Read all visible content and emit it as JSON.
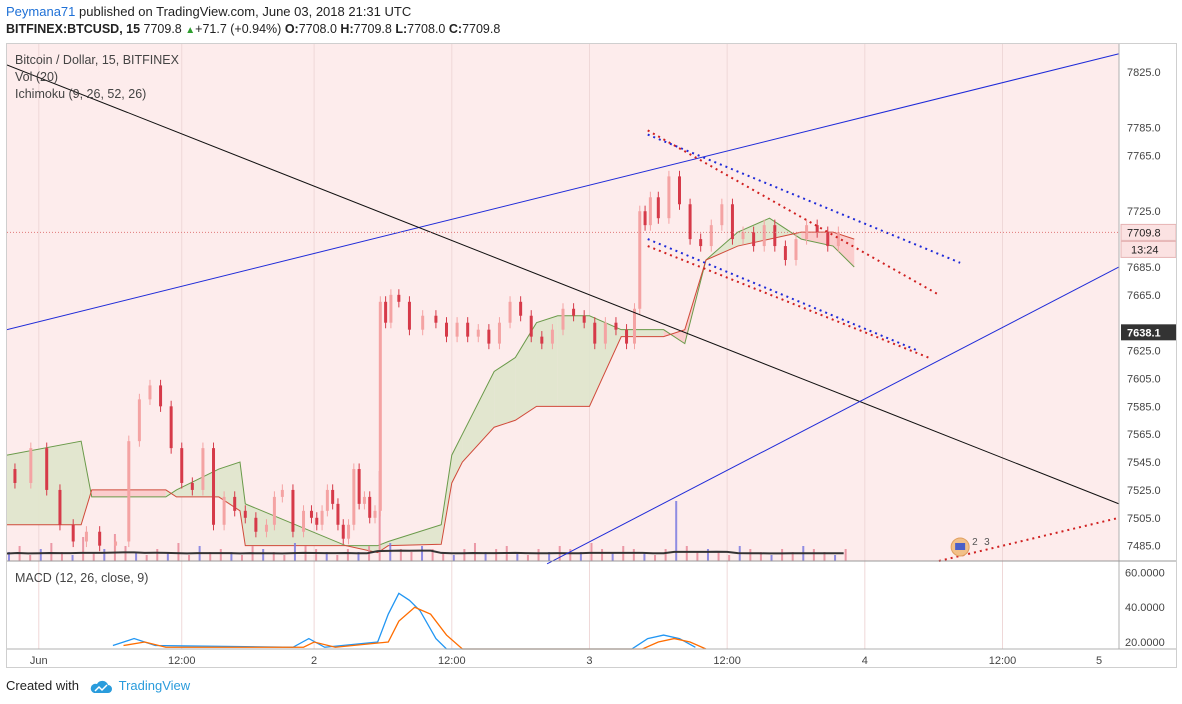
{
  "header": {
    "author": "Peymana71",
    "published": "published on TradingView.com, June 03, 2018 21:31 UTC",
    "symbol": "BITFINEX:BTCUSD, 15",
    "price": "7709.8",
    "up_arrow": "▲",
    "change": "+71.7 (+0.94%)",
    "o_label": "O:",
    "o": "7708.0",
    "h_label": "H:",
    "h": "7709.8",
    "l_label": "L:",
    "l": "7708.0",
    "c_label": "C:",
    "c": "7709.8"
  },
  "legend": {
    "title": "Bitcoin / Dollar, 15, BITFINEX",
    "vol": "Vol (20)",
    "ichimoku": "Ichimoku (9, 26, 52, 26)",
    "macd": "MACD (12, 26, close, 9)"
  },
  "footer": {
    "created": "Created with",
    "brand": "TradingView"
  },
  "colors": {
    "up": "#f4a3a3",
    "down": "#d63a49",
    "cloud_green": "#dfe6cc",
    "cloud_red": "#fbcaca",
    "trend_blue": "#1f2bd8",
    "trend_black": "#111111",
    "macd": "#2196f3",
    "signal": "#ff6d00",
    "plot_bg": "#fdecec"
  },
  "markers": {
    "numbers": [
      "2",
      "3"
    ]
  },
  "chart_data": [
    {
      "type": "candlestick",
      "title": "Bitcoin / Dollar, 15, BITFINEX",
      "ylim": [
        7474,
        7845
      ],
      "y_ticks": [
        "7825.0",
        "7785.0",
        "7765.0",
        "7725.0",
        "7709.8",
        "7685.0",
        "7665.0",
        "7638.1",
        "7625.0",
        "7605.0",
        "7585.0",
        "7565.0",
        "7545.0",
        "7525.0",
        "7505.0",
        "7485.0"
      ],
      "price_label": "7709.8",
      "countdown": "13:24",
      "level_label": "7638.1",
      "x_ticks": [
        "Jun",
        "12:00",
        "2",
        "12:00",
        "3",
        "12:00",
        "4",
        "12:00",
        "5"
      ],
      "price_path": [
        [
          0,
          7540
        ],
        [
          3,
          7530
        ],
        [
          6,
          7555
        ],
        [
          9,
          7525
        ],
        [
          11,
          7500
        ],
        [
          14,
          7488
        ],
        [
          16,
          7495
        ],
        [
          19,
          7485
        ],
        [
          22,
          7488
        ],
        [
          24,
          7560
        ],
        [
          26,
          7590
        ],
        [
          28,
          7600
        ],
        [
          30,
          7585
        ],
        [
          32,
          7555
        ],
        [
          34,
          7530
        ],
        [
          36,
          7525
        ],
        [
          38,
          7555
        ],
        [
          40,
          7500
        ],
        [
          42,
          7520
        ],
        [
          44,
          7510
        ],
        [
          46,
          7505
        ],
        [
          48,
          7495
        ],
        [
          50,
          7500
        ],
        [
          51,
          7520
        ],
        [
          53,
          7525
        ],
        [
          55,
          7495
        ],
        [
          57,
          7510
        ],
        [
          58,
          7505
        ],
        [
          59,
          7500
        ],
        [
          60,
          7510
        ],
        [
          61,
          7525
        ],
        [
          62,
          7515
        ],
        [
          63,
          7500
        ],
        [
          64,
          7490
        ],
        [
          65,
          7500
        ],
        [
          66,
          7540
        ],
        [
          67,
          7515
        ],
        [
          68,
          7520
        ],
        [
          69,
          7505
        ],
        [
          70,
          7510
        ],
        [
          71,
          7660
        ],
        [
          72,
          7645
        ],
        [
          73,
          7665
        ],
        [
          75,
          7660
        ],
        [
          77,
          7640
        ],
        [
          80,
          7650
        ],
        [
          82,
          7645
        ],
        [
          84,
          7635
        ],
        [
          86,
          7645
        ],
        [
          88,
          7635
        ],
        [
          90,
          7640
        ],
        [
          92,
          7630
        ],
        [
          94,
          7645
        ],
        [
          96,
          7660
        ],
        [
          98,
          7650
        ],
        [
          100,
          7635
        ],
        [
          102,
          7630
        ],
        [
          104,
          7640
        ],
        [
          106,
          7655
        ],
        [
          108,
          7650
        ],
        [
          110,
          7645
        ],
        [
          112,
          7630
        ],
        [
          114,
          7645
        ],
        [
          116,
          7640
        ],
        [
          118,
          7630
        ],
        [
          119,
          7655
        ],
        [
          120,
          7725
        ],
        [
          121,
          7715
        ],
        [
          122,
          7735
        ],
        [
          124,
          7720
        ],
        [
          126,
          7750
        ],
        [
          128,
          7730
        ],
        [
          130,
          7705
        ],
        [
          132,
          7700
        ],
        [
          134,
          7715
        ],
        [
          136,
          7730
        ],
        [
          138,
          7705
        ],
        [
          140,
          7710
        ],
        [
          142,
          7700
        ],
        [
          144,
          7715
        ],
        [
          146,
          7700
        ],
        [
          148,
          7690
        ],
        [
          150,
          7705
        ],
        [
          152,
          7715
        ],
        [
          154,
          7710
        ],
        [
          156,
          7700
        ],
        [
          158,
          7710
        ]
      ],
      "ichimoku_span_a": [
        [
          0,
          7550
        ],
        [
          14,
          7560
        ],
        [
          16,
          7520
        ],
        [
          30,
          7520
        ],
        [
          32,
          7525
        ],
        [
          40,
          7540
        ],
        [
          44,
          7545
        ],
        [
          45,
          7515
        ],
        [
          64,
          7485
        ],
        [
          70,
          7485
        ],
        [
          72,
          7488
        ],
        [
          82,
          7500
        ],
        [
          84,
          7550
        ],
        [
          86,
          7565
        ],
        [
          92,
          7610
        ],
        [
          96,
          7620
        ],
        [
          100,
          7645
        ],
        [
          104,
          7650
        ],
        [
          110,
          7650
        ],
        [
          116,
          7640
        ],
        [
          124,
          7640
        ],
        [
          128,
          7630
        ],
        [
          132,
          7690
        ],
        [
          138,
          7710
        ],
        [
          144,
          7720
        ],
        [
          150,
          7705
        ],
        [
          156,
          7700
        ],
        [
          160,
          7685
        ]
      ],
      "ichimoku_span_b": [
        [
          0,
          7500
        ],
        [
          14,
          7500
        ],
        [
          16,
          7525
        ],
        [
          30,
          7525
        ],
        [
          32,
          7520
        ],
        [
          40,
          7520
        ],
        [
          44,
          7510
        ],
        [
          45,
          7485
        ],
        [
          64,
          7485
        ],
        [
          70,
          7480
        ],
        [
          72,
          7485
        ],
        [
          82,
          7486
        ],
        [
          84,
          7530
        ],
        [
          86,
          7545
        ],
        [
          92,
          7570
        ],
        [
          96,
          7575
        ],
        [
          100,
          7585
        ],
        [
          104,
          7585
        ],
        [
          110,
          7585
        ],
        [
          116,
          7635
        ],
        [
          124,
          7635
        ],
        [
          128,
          7640
        ],
        [
          132,
          7690
        ],
        [
          138,
          7700
        ],
        [
          144,
          7705
        ],
        [
          150,
          7710
        ],
        [
          156,
          7710
        ],
        [
          160,
          7705
        ]
      ],
      "volume": [
        3,
        5,
        2,
        4,
        6,
        3,
        2,
        8,
        3,
        4,
        9,
        5,
        3,
        2,
        4,
        3,
        6,
        2,
        5,
        3,
        4,
        3,
        2,
        5,
        4,
        3,
        2,
        6,
        5,
        4,
        3,
        2,
        4,
        3,
        5,
        30,
        6,
        4,
        3,
        5,
        4,
        3,
        2,
        4,
        6,
        3,
        4,
        5,
        3,
        2,
        4,
        3,
        5,
        4,
        3,
        6,
        4,
        3,
        5,
        4,
        3,
        2,
        4,
        20,
        5,
        3,
        4,
        3,
        2,
        5,
        4,
        3,
        2,
        4,
        3,
        5,
        4,
        3,
        2,
        4
      ],
      "trendlines": [
        {
          "color": "blue",
          "from": [
            0,
            7640
          ],
          "to": [
            210,
            7838
          ]
        },
        {
          "color": "black",
          "from": [
            0,
            7830
          ],
          "to": [
            210,
            7515
          ]
        },
        {
          "color": "blue",
          "from": [
            102,
            7472
          ],
          "to": [
            210,
            7685
          ]
        },
        {
          "color": "blue-dotted",
          "from": [
            121,
            7780
          ],
          "to": [
            180,
            7688
          ]
        },
        {
          "color": "blue-dotted",
          "from": [
            121,
            7705
          ],
          "to": [
            172,
            7625
          ]
        },
        {
          "color": "red-dotted",
          "from": [
            121,
            7783
          ],
          "to": [
            176,
            7665
          ]
        },
        {
          "color": "red-dotted",
          "from": [
            121,
            7700
          ],
          "to": [
            174,
            7620
          ]
        },
        {
          "color": "red-dotted",
          "from": [
            176,
            7474
          ],
          "to": [
            210,
            7505
          ]
        }
      ]
    },
    {
      "type": "line",
      "title": "MACD (12, 26, close, 9)",
      "ylim": [
        16,
        66
      ],
      "y_ticks": [
        "60.0000",
        "40.0000",
        "20.0000"
      ],
      "series": [
        {
          "name": "MACD",
          "values": [
            [
              20,
              18
            ],
            [
              24,
              22
            ],
            [
              28,
              18
            ],
            [
              54,
              17
            ],
            [
              57,
              22
            ],
            [
              60,
              17
            ],
            [
              70,
              20
            ],
            [
              72,
              36
            ],
            [
              74,
              48
            ],
            [
              76,
              44
            ],
            [
              78,
              38
            ],
            [
              81,
              22
            ],
            [
              83,
              16
            ],
            [
              118,
              16
            ],
            [
              121,
              22
            ],
            [
              124,
              24
            ],
            [
              127,
              22
            ],
            [
              130,
              17
            ]
          ]
        },
        {
          "name": "Signal",
          "values": [
            [
              22,
              18
            ],
            [
              26,
              20
            ],
            [
              30,
              17
            ],
            [
              56,
              17
            ],
            [
              58,
              20
            ],
            [
              62,
              17
            ],
            [
              72,
              20
            ],
            [
              74,
              32
            ],
            [
              77,
              40
            ],
            [
              80,
              36
            ],
            [
              83,
              24
            ],
            [
              86,
              16
            ],
            [
              120,
              16
            ],
            [
              123,
              20
            ],
            [
              126,
              22
            ],
            [
              129,
              20
            ],
            [
              132,
              16
            ]
          ]
        }
      ]
    }
  ]
}
